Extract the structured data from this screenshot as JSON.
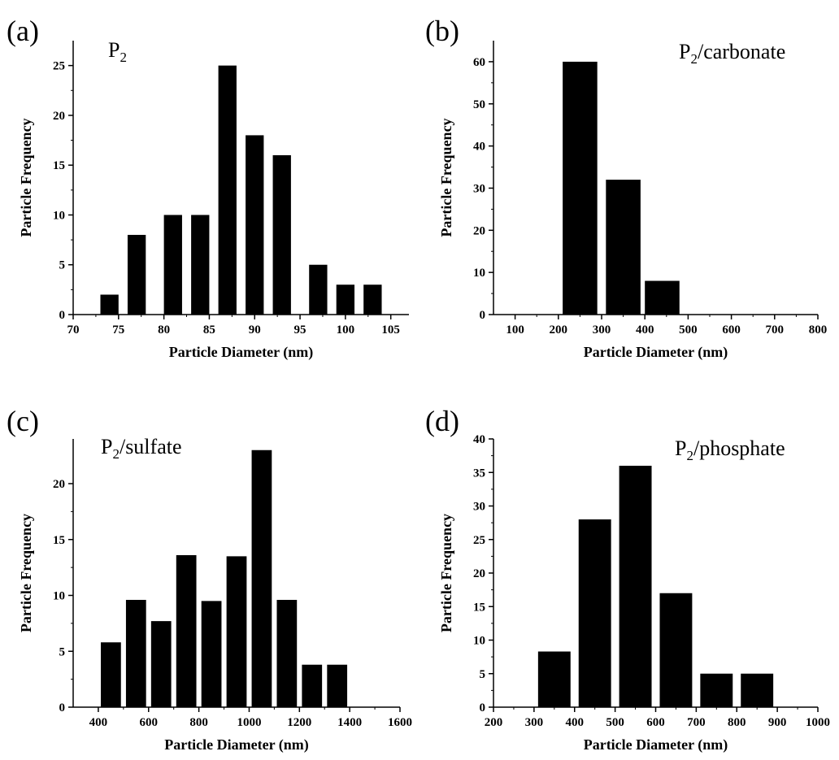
{
  "chart_data": [
    {
      "type": "bar",
      "panel_label": "(a)",
      "title": "P",
      "title_sub": "2",
      "title_rest": "",
      "xlabel": "Particle Diameter (nm)",
      "ylabel": "Particle Frequency",
      "xlim": [
        70,
        107
      ],
      "ylim": [
        0,
        27.5
      ],
      "xticks": [
        70,
        75,
        80,
        85,
        90,
        95,
        100,
        105
      ],
      "yticks": [
        0,
        5,
        10,
        15,
        20,
        25
      ],
      "bar_width": 2,
      "x": [
        74,
        77,
        81,
        84,
        87,
        90,
        93,
        97,
        100,
        103
      ],
      "values": [
        2,
        8,
        10,
        10,
        25,
        18,
        16,
        5,
        3,
        3
      ]
    },
    {
      "type": "bar",
      "panel_label": "(b)",
      "title": "P",
      "title_sub": "2",
      "title_rest": "/carbonate",
      "xlabel": "Particle Diameter (nm)",
      "ylabel": "Particle Frequency",
      "xlim": [
        50,
        800
      ],
      "ylim": [
        0,
        65
      ],
      "xticks": [
        100,
        200,
        300,
        400,
        500,
        600,
        700,
        800
      ],
      "yticks": [
        0,
        10,
        20,
        30,
        40,
        50,
        60
      ],
      "bar_width": 80,
      "x": [
        250,
        350,
        440
      ],
      "values": [
        60,
        32,
        8
      ]
    },
    {
      "type": "bar",
      "panel_label": "(c)",
      "title": "P",
      "title_sub": "2",
      "title_rest": "/sulfate",
      "xlabel": "Particle Diameter (nm)",
      "ylabel": "Particle Frequency",
      "xlim": [
        300,
        1600
      ],
      "ylim": [
        0,
        24
      ],
      "xticks": [
        400,
        600,
        800,
        1000,
        1200,
        1400,
        1600
      ],
      "yticks": [
        0,
        5,
        10,
        15,
        20
      ],
      "bar_width": 80,
      "x": [
        450,
        550,
        650,
        750,
        850,
        950,
        1050,
        1150,
        1250,
        1350
      ],
      "values": [
        5.8,
        9.6,
        7.7,
        13.6,
        9.5,
        13.5,
        23,
        9.6,
        3.8,
        3.8
      ]
    },
    {
      "type": "bar",
      "panel_label": "(d)",
      "title": "P",
      "title_sub": "2",
      "title_rest": "/phosphate",
      "xlabel": "Particle Diameter (nm)",
      "ylabel": "Particle Frequency",
      "xlim": [
        200,
        1000
      ],
      "ylim": [
        0,
        40
      ],
      "xticks": [
        200,
        300,
        400,
        500,
        600,
        700,
        800,
        900,
        1000
      ],
      "yticks": [
        0,
        5,
        10,
        15,
        20,
        25,
        30,
        35,
        40
      ],
      "bar_width": 80,
      "x": [
        350,
        450,
        550,
        650,
        750,
        850
      ],
      "values": [
        8.3,
        28,
        36,
        17,
        5,
        5
      ]
    }
  ]
}
